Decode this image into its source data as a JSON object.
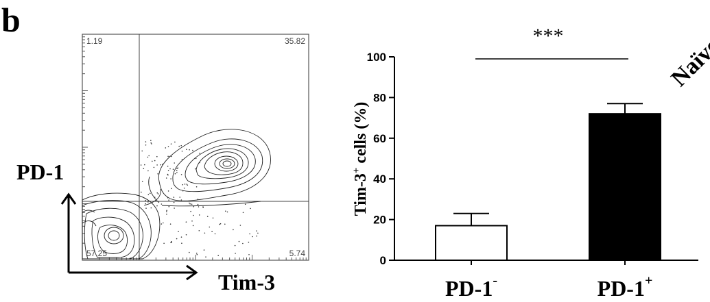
{
  "panel_label": "b",
  "flow_plot": {
    "y_marker": "PD-1",
    "x_marker": "Tim-3",
    "quadrants": {
      "upper_left": "1.19",
      "upper_right": "35.82",
      "lower_left": "57.25",
      "lower_right": "5.74"
    }
  },
  "corner_text": "Naïve",
  "chart_data": {
    "type": "bar",
    "title": "",
    "ylabel_main": "Tim-3",
    "ylabel_sup": "+",
    "ylabel_rest": " cells (%)",
    "categories": [
      {
        "base": "PD-1",
        "sup": "-"
      },
      {
        "base": "PD-1",
        "sup": "+"
      }
    ],
    "values": [
      17,
      72
    ],
    "errors": [
      6,
      5
    ],
    "bar_colors": [
      "#ffffff",
      "#000000"
    ],
    "ylim": [
      0,
      100
    ],
    "yticks": [
      0,
      20,
      40,
      60,
      80,
      100
    ],
    "significance": {
      "label": "***",
      "between": [
        0,
        1
      ]
    }
  }
}
